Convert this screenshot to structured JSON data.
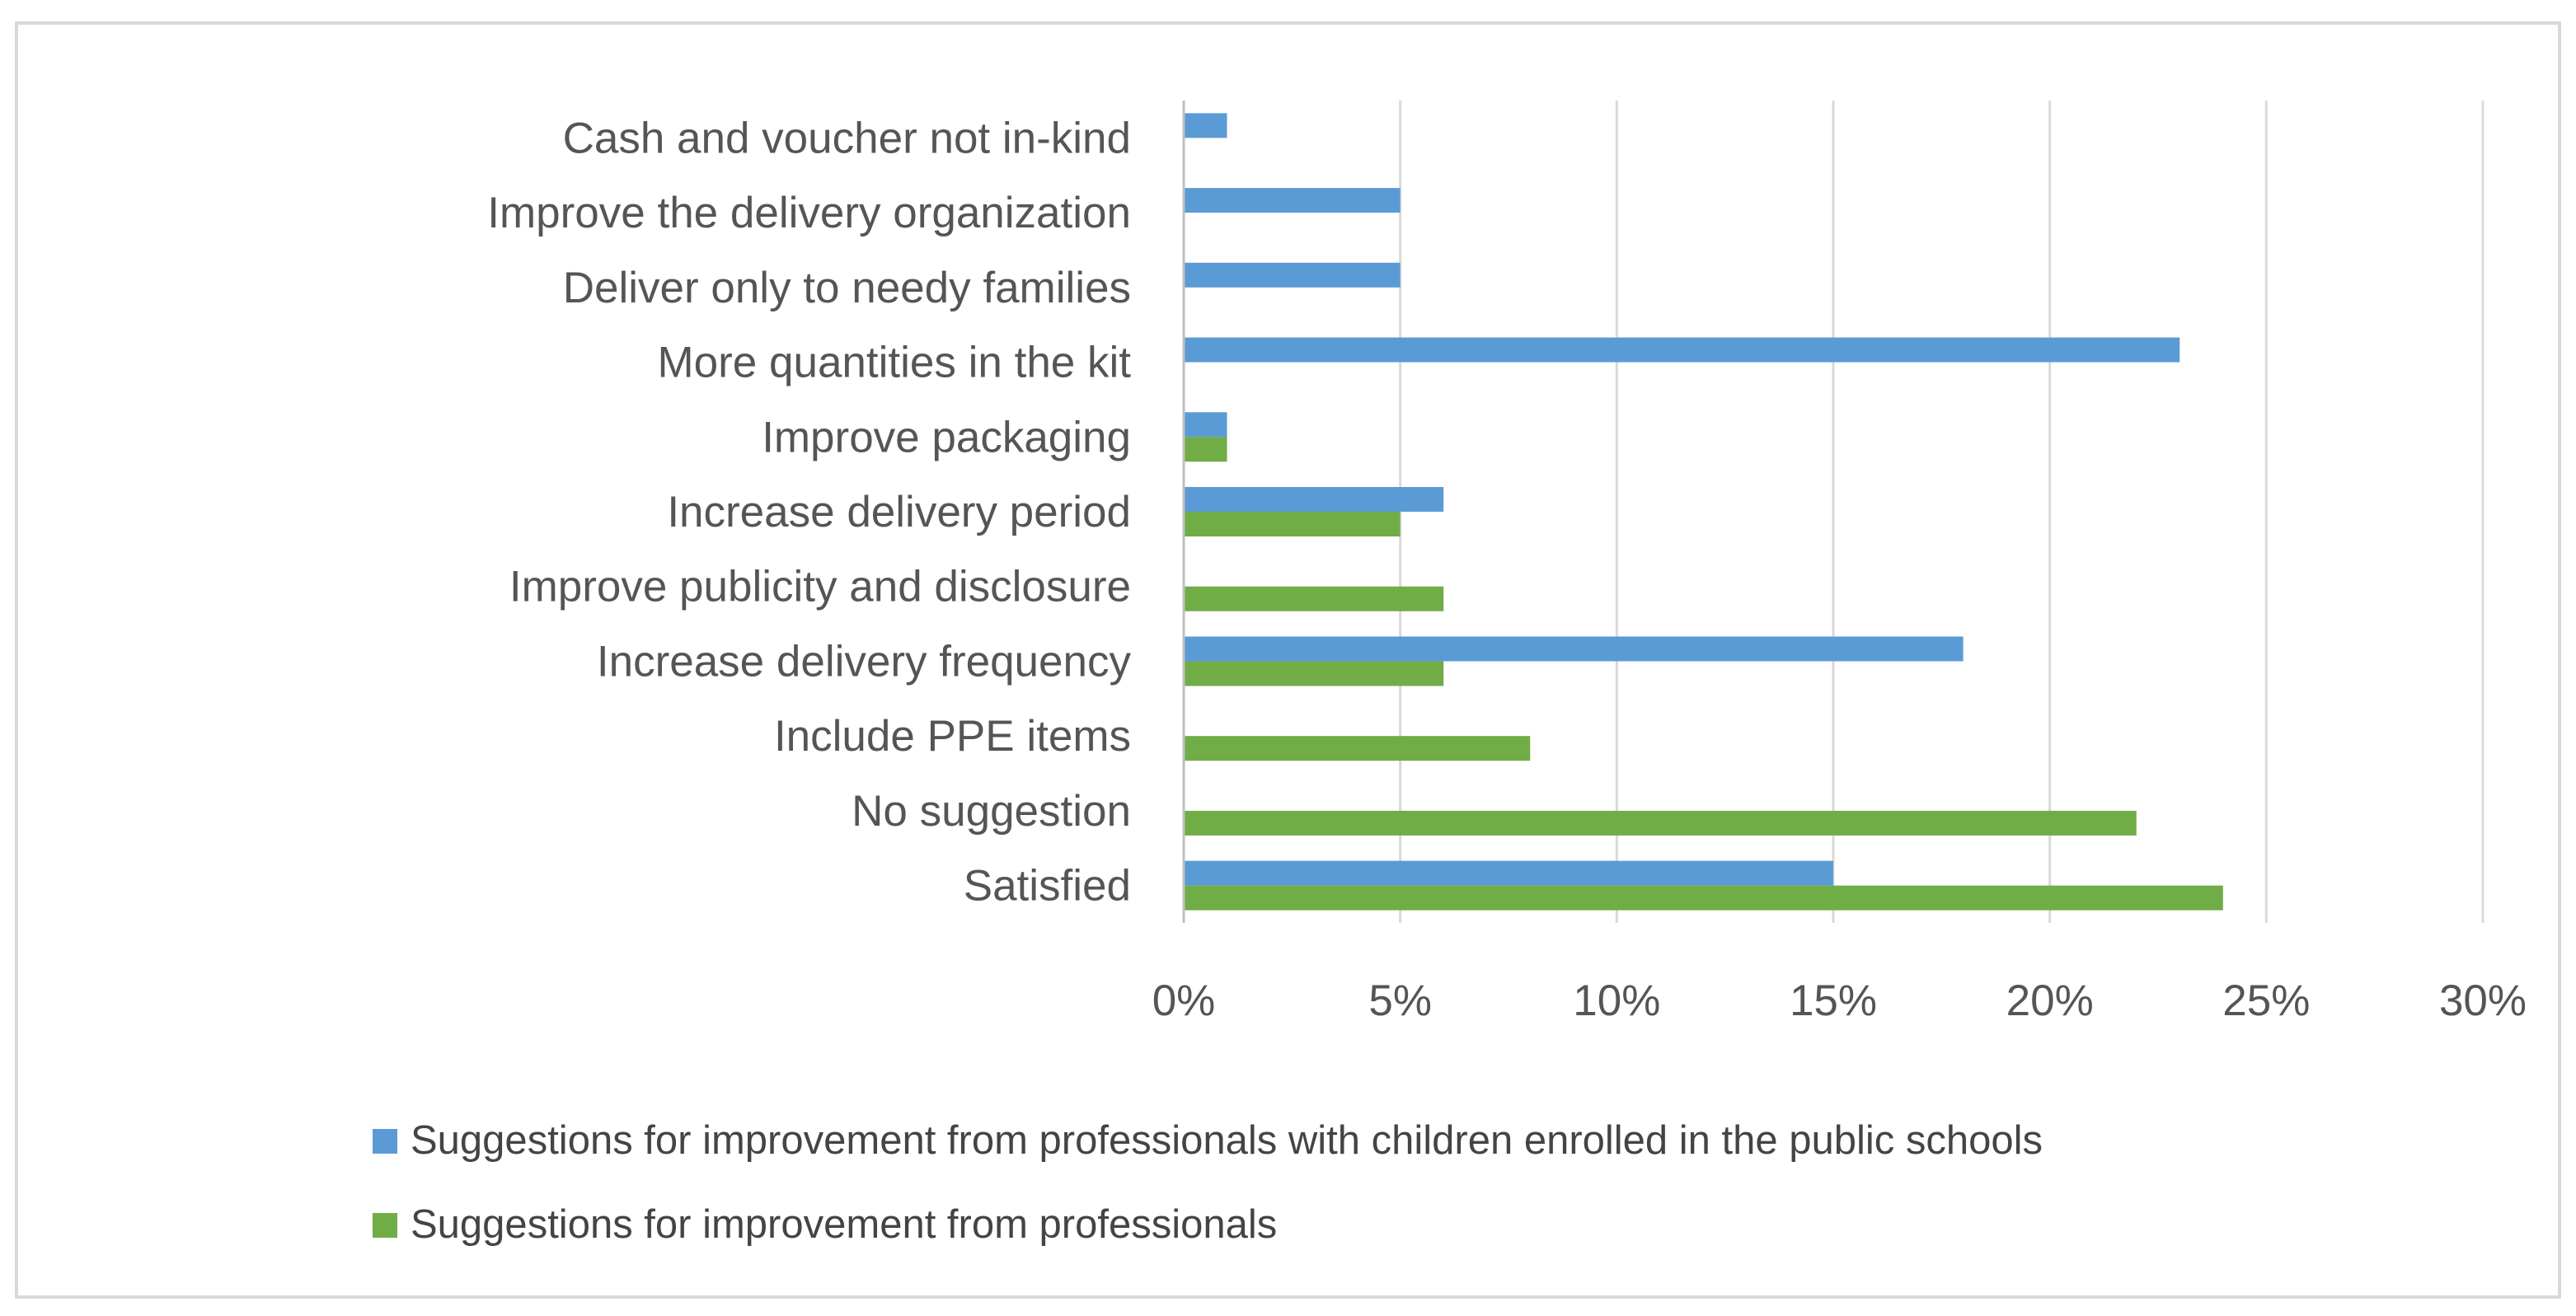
{
  "chart_data": {
    "type": "bar",
    "orientation": "horizontal",
    "title": "",
    "xlabel": "",
    "ylabel": "",
    "xlim": [
      0,
      30
    ],
    "tick_values": [
      0,
      5,
      10,
      15,
      20,
      25,
      30
    ],
    "tick_labels": [
      "0%",
      "5%",
      "10%",
      "15%",
      "20%",
      "25%",
      "30%"
    ],
    "grid": "vertical",
    "legend_position": "bottom",
    "categories": [
      "Cash and voucher not in-kind",
      "Improve the delivery organization",
      "Deliver only to needy families",
      "More quantities in the kit",
      "Improve packaging",
      "Increase delivery period",
      "Improve publicity and disclosure",
      "Increase delivery frequency",
      "Include PPE items",
      "No suggestion",
      "Satisfied"
    ],
    "series": [
      {
        "name": "Suggestions for improvement from professionals with children enrolled in the public schools",
        "color": "#5b9bd5",
        "values": [
          1,
          5,
          5,
          23,
          1,
          6,
          null,
          18,
          null,
          null,
          15
        ]
      },
      {
        "name": "Suggestions for improvement from professionals",
        "color": "#70ad47",
        "values": [
          null,
          null,
          null,
          null,
          1,
          5,
          6,
          6,
          8,
          22,
          24
        ]
      }
    ],
    "colors": {
      "border": "#d9d9d9",
      "grid": "#d9d9d9",
      "axis": "#bfbfbf",
      "text": "#595959"
    }
  }
}
